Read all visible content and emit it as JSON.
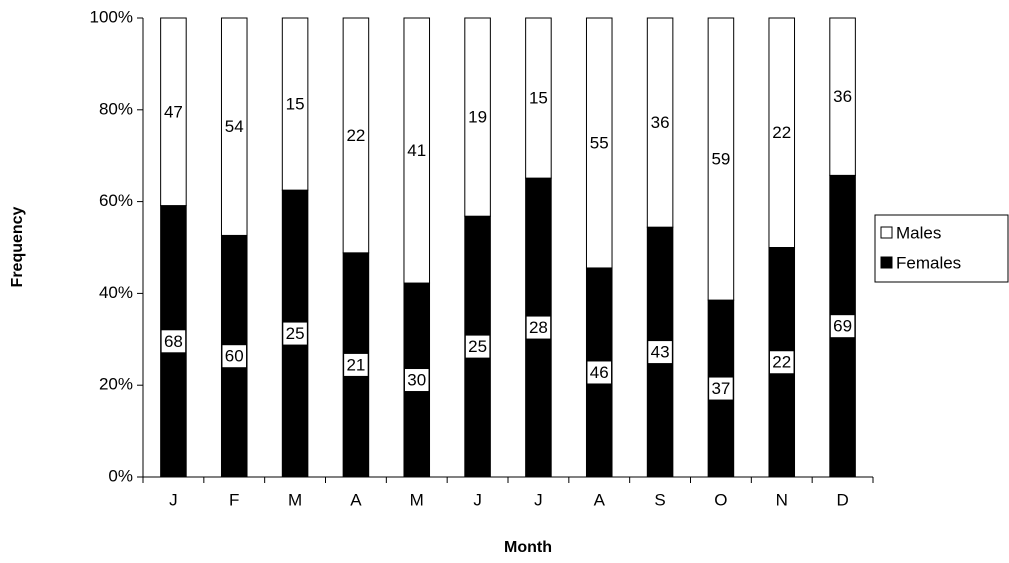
{
  "chart_data": {
    "type": "stacked_percent_bar",
    "xlabel": "Month",
    "ylabel": "Frequency",
    "categories": [
      "J",
      "F",
      "M",
      "A",
      "M",
      "J",
      "J",
      "A",
      "S",
      "O",
      "N",
      "D"
    ],
    "series": [
      {
        "name": "Females",
        "color": "#000000",
        "values": [
          68,
          60,
          25,
          21,
          30,
          25,
          28,
          46,
          43,
          37,
          22,
          69
        ]
      },
      {
        "name": "Males",
        "color": "#ffffff",
        "values": [
          47,
          54,
          15,
          22,
          41,
          19,
          15,
          55,
          36,
          59,
          22,
          36
        ]
      }
    ],
    "ylim": [
      0,
      100
    ],
    "yticks": [
      {
        "value": 0,
        "label": "0%"
      },
      {
        "value": 20,
        "label": "20%"
      },
      {
        "value": 40,
        "label": "40%"
      },
      {
        "value": 60,
        "label": "60%"
      },
      {
        "value": 80,
        "label": "80%"
      },
      {
        "value": 100,
        "label": "100%"
      }
    ],
    "legend": "right"
  }
}
